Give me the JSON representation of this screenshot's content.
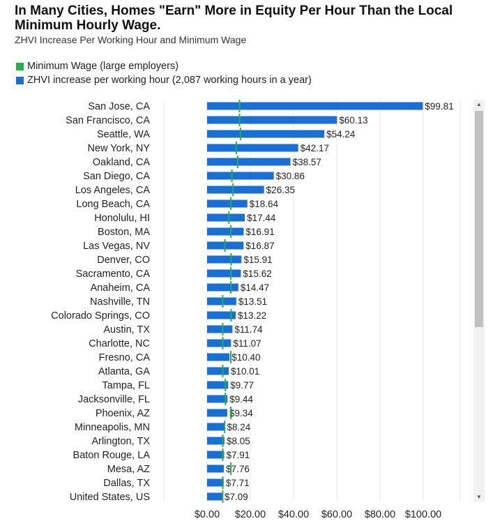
{
  "chart_data": {
    "type": "bar",
    "orientation": "horizontal",
    "title": "In Many Cities, Homes \"Earn\" More in Equity Per Hour Than the Local Minimum Hourly Wage.",
    "subtitle": "ZHVI Increase Per Working Hour and Minimum Wage",
    "legend_position": "top-left",
    "grid": true,
    "xlim": [
      0,
      100
    ],
    "xticks": [
      "$0.00",
      "$20.00",
      "$40.00",
      "$60.00",
      "$80.00",
      "$100.00"
    ],
    "categories": [
      "San Jose, CA",
      "San Francisco, CA",
      "Seattle, WA",
      "New York, NY",
      "Oakland, CA",
      "San Diego, CA",
      "Los Angeles, CA",
      "Long Beach, CA",
      "Honolulu, HI",
      "Boston, MA",
      "Las Vegas, NV",
      "Denver, CO",
      "Sacramento, CA",
      "Anaheim, CA",
      "Nashville, TN",
      "Colorado Springs, CO",
      "Austin, TX",
      "Charlotte, NC",
      "Fresno, CA",
      "Atlanta, GA",
      "Tampa, FL",
      "Jacksonville, FL",
      "Phoenix, AZ",
      "Minneapolis, MN",
      "Arlington, TX",
      "Baton Rouge, LA",
      "Mesa, AZ",
      "Dallas, TX",
      "United States, US"
    ],
    "series": [
      {
        "name": "ZHVI increase per working hour (2,087 working hours in a year)",
        "type": "bar",
        "color": "#1a6fd4",
        "values": [
          99.81,
          60.13,
          54.24,
          42.17,
          38.57,
          30.86,
          26.35,
          18.64,
          17.44,
          16.91,
          16.87,
          15.91,
          15.62,
          14.47,
          13.51,
          13.22,
          11.74,
          11.07,
          10.4,
          10.01,
          9.77,
          9.44,
          9.34,
          8.24,
          8.05,
          7.91,
          7.76,
          7.71,
          7.09
        ],
        "labels": [
          "$99.81",
          "$60.13",
          "$54.24",
          "$42.17",
          "$38.57",
          "$30.86",
          "$26.35",
          "$18.64",
          "$17.44",
          "$16.91",
          "$16.87",
          "$15.91",
          "$15.62",
          "$14.47",
          "$13.51",
          "$13.22",
          "$11.74",
          "$11.07",
          "$10.40",
          "$10.01",
          "$9.77",
          "$9.44",
          "$9.34",
          "$8.24",
          "$8.05",
          "$7.91",
          "$7.76",
          "$7.71",
          "$7.09"
        ]
      },
      {
        "name": "Minimum Wage (large employers)",
        "type": "marker",
        "color": "#22b14c",
        "values": [
          15.0,
          15.0,
          15.45,
          13.5,
          14.14,
          11.5,
          12.0,
          11.0,
          10.1,
          11.0,
          8.25,
          11.1,
          11.0,
          11.0,
          7.25,
          11.1,
          7.25,
          7.25,
          11.0,
          7.25,
          8.46,
          8.46,
          11.0,
          8.15,
          7.25,
          7.25,
          11.0,
          7.25,
          7.25
        ]
      }
    ]
  },
  "ui": {
    "scrollbar": {
      "up_glyph": "▲",
      "down_glyph": "▼"
    }
  }
}
